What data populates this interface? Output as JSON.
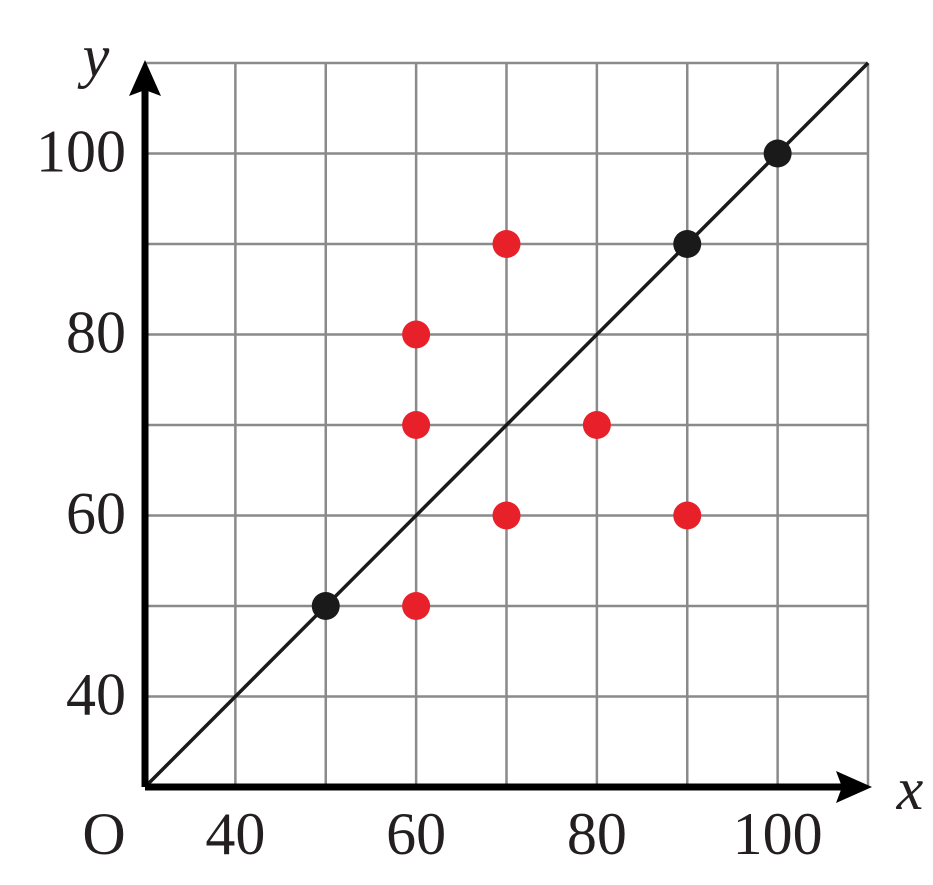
{
  "chart_data": {
    "type": "scatter",
    "x_label": "x",
    "y_label": "y",
    "origin_label": "O",
    "xlim": [
      30,
      110
    ],
    "ylim": [
      30,
      110
    ],
    "xticks": [
      40,
      60,
      80,
      100
    ],
    "yticks": [
      40,
      60,
      80,
      100
    ],
    "xgrid": [
      40,
      50,
      60,
      70,
      80,
      90,
      100,
      110
    ],
    "ygrid": [
      40,
      50,
      60,
      70,
      80,
      90,
      100,
      110
    ],
    "grid_color": "#8a8a8a",
    "lines": [
      {
        "color": "#1a1a1a",
        "x": [
          30,
          110
        ],
        "values": [
          30,
          110
        ]
      }
    ],
    "series": [
      {
        "color": "#1a1a1a",
        "x": [
          50,
          90,
          100
        ],
        "values": [
          50,
          90,
          100
        ]
      },
      {
        "color": "#e8202a",
        "x": [
          70,
          60,
          60,
          80,
          70,
          90,
          60
        ],
        "values": [
          90,
          80,
          70,
          70,
          60,
          60,
          50
        ]
      }
    ]
  }
}
